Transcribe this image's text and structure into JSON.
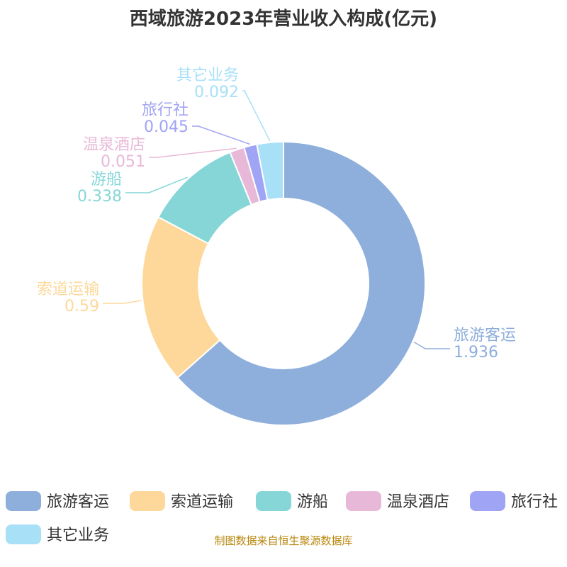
{
  "chart_data": {
    "type": "pie",
    "title": "西域旅游2023年营业收入构成(亿元)",
    "categories": [
      "旅游客运",
      "索道运输",
      "游船",
      "温泉酒店",
      "旅行社",
      "其它业务"
    ],
    "values": [
      1.936,
      0.59,
      0.338,
      0.051,
      0.045,
      0.092
    ],
    "value_labels": [
      "1.936",
      "0.59",
      "0.338",
      "0.051",
      "0.045",
      "0.092"
    ],
    "colors": [
      "#8eaedb",
      "#fdd89a",
      "#86d6d8",
      "#e8b8d8",
      "#a0a4f4",
      "#a8e0f8"
    ],
    "style": "donut",
    "start_angle_deg": 90,
    "direction": "clockwise",
    "legend_position": "bottom"
  },
  "source": {
    "text": "制图数据来自恒生聚源数据库",
    "color": "#b8860b"
  }
}
